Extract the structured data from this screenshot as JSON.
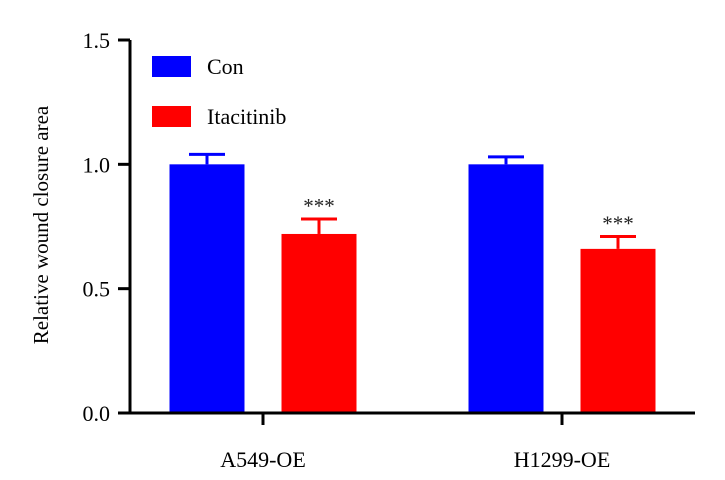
{
  "chart_data": {
    "type": "bar",
    "categories": [
      "A549-OE",
      "H1299-OE"
    ],
    "series": [
      {
        "name": "Con",
        "values": [
          1.0,
          1.0
        ],
        "errors": [
          0.04,
          0.03
        ],
        "color": "#0000ff",
        "significance": [
          "",
          ""
        ]
      },
      {
        "name": "Itacitinib",
        "values": [
          0.72,
          0.66
        ],
        "errors": [
          0.06,
          0.05
        ],
        "color": "#ff0000",
        "significance": [
          "***",
          "***"
        ]
      }
    ],
    "title": "",
    "xlabel": "",
    "ylabel": "Relative wound closure area",
    "ylim": [
      0,
      1.5
    ],
    "yticks": [
      "0.0",
      "0.5",
      "1.0",
      "1.5"
    ],
    "grid": false,
    "legend": "top-left"
  }
}
